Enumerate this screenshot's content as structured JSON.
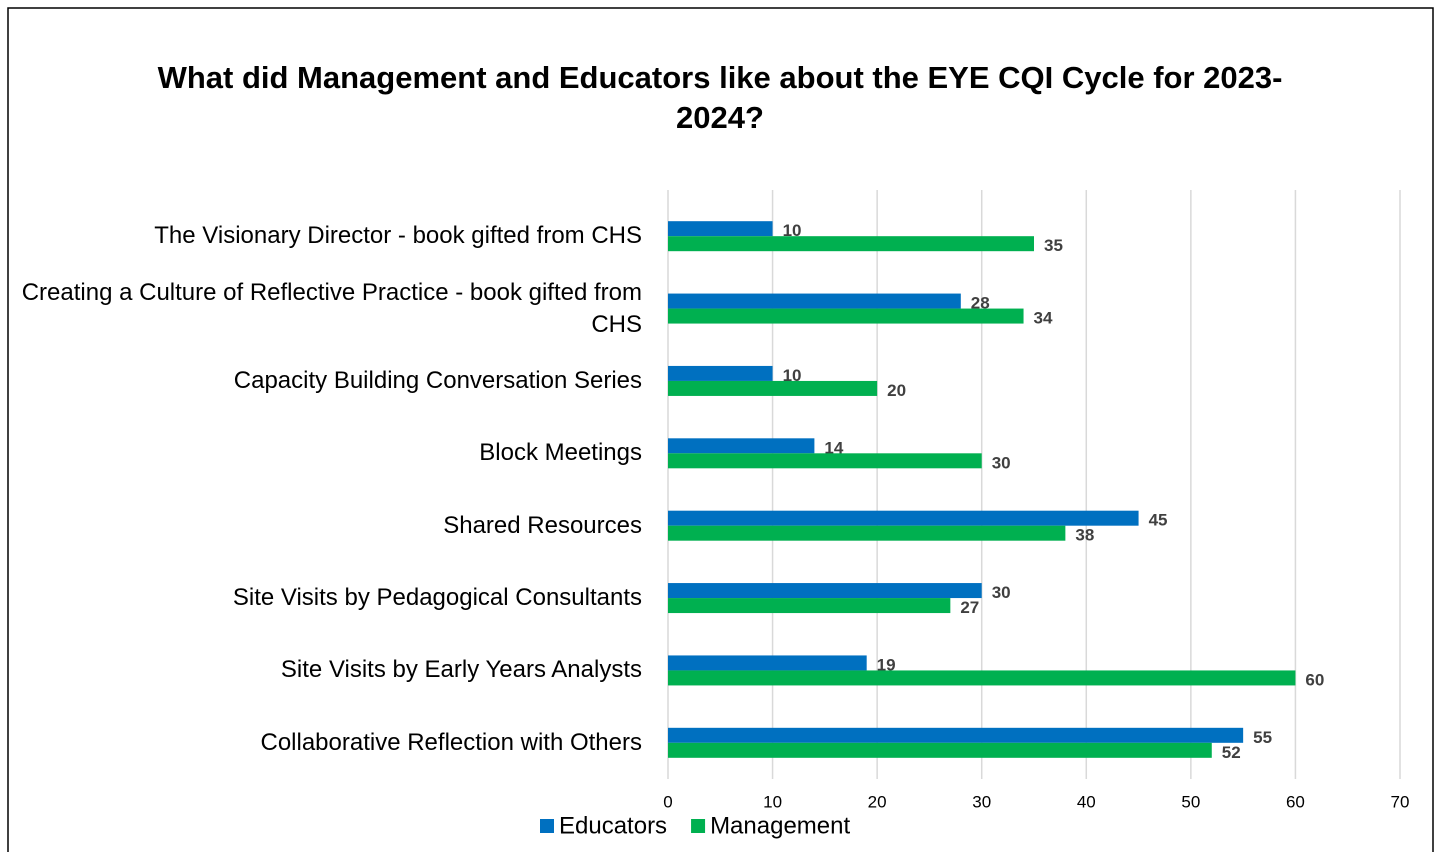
{
  "chart_data": {
    "type": "bar",
    "orientation": "horizontal",
    "title": "What did Management and Educators like about the EYE CQI Cycle for 2023-2024?",
    "categories": [
      "The Visionary Director - book gifted from CHS",
      "Creating a Culture of Reflective Practice - book gifted from CHS",
      "Capacity Building Conversation Series",
      "Block Meetings",
      "Shared Resources",
      "Site Visits by Pedagogical Consultants",
      "Site Visits by Early Years Analysts",
      "Collaborative Reflection with Others"
    ],
    "series": [
      {
        "name": "Educators",
        "color": "#0070c0",
        "values": [
          10,
          28,
          10,
          14,
          45,
          30,
          19,
          55
        ]
      },
      {
        "name": "Management",
        "color": "#00b050",
        "values": [
          35,
          34,
          20,
          30,
          38,
          27,
          60,
          52
        ]
      }
    ],
    "xlim": [
      0,
      70
    ],
    "xticks": [
      0,
      10,
      20,
      30,
      40,
      50,
      60,
      70
    ],
    "grid": true,
    "legend": "bottom"
  }
}
